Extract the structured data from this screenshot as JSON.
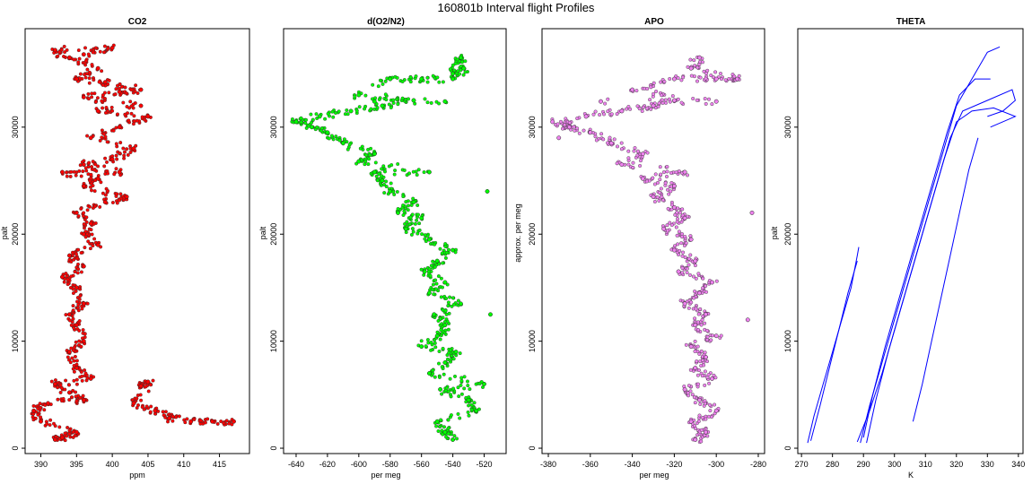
{
  "figure_title": "160801b   Interval flight Profiles",
  "chart_data": [
    {
      "type": "scatter",
      "title": "CO2",
      "xlabel": "ppm",
      "ylabel": "palt",
      "xlim": [
        387.8,
        419.2
      ],
      "ylim": [
        -500,
        39200
      ],
      "xticks": [
        390,
        395,
        400,
        405,
        410,
        415
      ],
      "yticks": [
        0,
        10000,
        20000,
        30000
      ],
      "color": "#ff0000",
      "series": [
        {
          "points": [
            [
              392,
              800
            ],
            [
              393,
              1000
            ],
            [
              395,
              1500
            ],
            [
              390,
              2500
            ],
            [
              389,
              3500
            ],
            [
              391,
              4200
            ],
            [
              396,
              4500
            ],
            [
              394,
              5200
            ],
            [
              392,
              6000
            ],
            [
              397,
              6500
            ],
            [
              395,
              7500
            ],
            [
              394,
              9000
            ],
            [
              396,
              10000
            ],
            [
              395,
              11500
            ],
            [
              394,
              12500
            ],
            [
              396,
              13500
            ],
            [
              395,
              15000
            ],
            [
              393,
              16000
            ],
            [
              396,
              17000
            ],
            [
              394,
              18000
            ],
            [
              398,
              19000
            ],
            [
              396,
              20000
            ],
            [
              397,
              21000
            ],
            [
              395,
              22000
            ],
            [
              399,
              23000
            ],
            [
              402,
              23500
            ],
            [
              396,
              24500
            ],
            [
              398,
              25200
            ],
            [
              393,
              25800
            ],
            [
              401,
              25800
            ],
            [
              396,
              26500
            ],
            [
              400,
              27000
            ],
            [
              403,
              28000
            ],
            [
              397,
              29000
            ],
            [
              401,
              30000
            ],
            [
              405,
              31000
            ],
            [
              398,
              31500
            ],
            [
              404,
              32000
            ],
            [
              396,
              32800
            ],
            [
              401,
              33300
            ],
            [
              404,
              33500
            ],
            [
              399,
              34200
            ],
            [
              395,
              34500
            ],
            [
              398,
              35500
            ],
            [
              394,
              36500
            ],
            [
              392,
              37200
            ],
            [
              400,
              37400
            ],
            [
              396,
              36800
            ],
            [
              404,
              5800
            ],
            [
              405,
              6200
            ],
            [
              403,
              4200
            ],
            [
              406,
              3500
            ],
            [
              408,
              2800
            ],
            [
              411,
              2500
            ],
            [
              414,
              2500
            ],
            [
              417,
              2500
            ]
          ]
        }
      ]
    },
    {
      "type": "scatter",
      "title": "d(O2/N2)",
      "xlabel": "per meg",
      "ylabel": "palt",
      "xlim": [
        -648,
        -506
      ],
      "ylim": [
        -500,
        39200
      ],
      "xticks": [
        -640,
        -620,
        -600,
        -580,
        -560,
        -540,
        -520
      ],
      "yticks": [
        0,
        10000,
        20000,
        30000
      ],
      "color": "#00ff00",
      "series": [
        {
          "points": [
            [
              -540,
              800
            ],
            [
              -545,
              1500
            ],
            [
              -550,
              2500
            ],
            [
              -525,
              3500
            ],
            [
              -530,
              4500
            ],
            [
              -548,
              5500
            ],
            [
              -520,
              6000
            ],
            [
              -555,
              7000
            ],
            [
              -545,
              8000
            ],
            [
              -538,
              9000
            ],
            [
              -560,
              9500
            ],
            [
              -550,
              10500
            ],
            [
              -545,
              11500
            ],
            [
              -552,
              12500
            ],
            [
              -535,
              13500
            ],
            [
              -555,
              14500
            ],
            [
              -545,
              15500
            ],
            [
              -558,
              16500
            ],
            [
              -550,
              17500
            ],
            [
              -540,
              18500
            ],
            [
              -555,
              19500
            ],
            [
              -570,
              20500
            ],
            [
              -560,
              21500
            ],
            [
              -575,
              22000
            ],
            [
              -565,
              23000
            ],
            [
              -580,
              24000
            ],
            [
              -585,
              25000
            ],
            [
              -590,
              25800
            ],
            [
              -555,
              25800
            ],
            [
              -600,
              26800
            ],
            [
              -590,
              27500
            ],
            [
              -610,
              28500
            ],
            [
              -620,
              29500
            ],
            [
              -630,
              30000
            ],
            [
              -640,
              30500
            ],
            [
              -625,
              31000
            ],
            [
              -605,
              31500
            ],
            [
              -585,
              32000
            ],
            [
              -565,
              32500
            ],
            [
              -600,
              33000
            ],
            [
              -580,
              34500
            ],
            [
              -560,
              34500
            ],
            [
              -540,
              34500
            ],
            [
              -533,
              35500
            ],
            [
              -535,
              36500
            ],
            [
              -540,
              35000
            ],
            [
              -518,
              24000
            ],
            [
              -516,
              12500
            ],
            [
              -545,
              32400
            ],
            [
              -590,
              32400
            ]
          ]
        }
      ]
    },
    {
      "type": "scatter",
      "title": "APO",
      "xlabel": "per meg",
      "ylabel": "approx. per meg",
      "xlim": [
        -383,
        -277
      ],
      "ylim": [
        -500,
        39200
      ],
      "xticks": [
        -380,
        -360,
        -340,
        -320,
        -300,
        -280
      ],
      "yticks": [
        0,
        10000,
        20000,
        30000
      ],
      "color": "#ee82ee",
      "series": [
        {
          "points": [
            [
              -310,
              800
            ],
            [
              -305,
              1500
            ],
            [
              -312,
              2500
            ],
            [
              -300,
              3500
            ],
            [
              -308,
              4500
            ],
            [
              -315,
              5500
            ],
            [
              -302,
              6500
            ],
            [
              -310,
              7500
            ],
            [
              -305,
              8500
            ],
            [
              -312,
              9500
            ],
            [
              -300,
              10500
            ],
            [
              -310,
              11500
            ],
            [
              -305,
              12500
            ],
            [
              -315,
              13500
            ],
            [
              -308,
              14500
            ],
            [
              -302,
              15500
            ],
            [
              -318,
              16500
            ],
            [
              -310,
              17500
            ],
            [
              -320,
              18500
            ],
            [
              -312,
              19500
            ],
            [
              -325,
              20500
            ],
            [
              -315,
              21500
            ],
            [
              -320,
              22500
            ],
            [
              -330,
              23500
            ],
            [
              -320,
              24500
            ],
            [
              -335,
              25200
            ],
            [
              -315,
              25800
            ],
            [
              -345,
              26500
            ],
            [
              -335,
              27500
            ],
            [
              -350,
              28500
            ],
            [
              -360,
              29500
            ],
            [
              -370,
              30000
            ],
            [
              -378,
              30500
            ],
            [
              -362,
              31000
            ],
            [
              -345,
              31500
            ],
            [
              -330,
              32000
            ],
            [
              -320,
              32500
            ],
            [
              -340,
              33500
            ],
            [
              -320,
              34500
            ],
            [
              -300,
              34500
            ],
            [
              -290,
              34500
            ],
            [
              -312,
              35500
            ],
            [
              -308,
              36500
            ],
            [
              -375,
              29000
            ],
            [
              -283,
              22000
            ],
            [
              -285,
              12000
            ],
            [
              -300,
              32400
            ],
            [
              -355,
              32400
            ]
          ]
        }
      ]
    },
    {
      "type": "line",
      "title": "THETA",
      "xlabel": "K",
      "ylabel": "palt",
      "xlim": [
        268.8,
        341.5
      ],
      "ylim": [
        -500,
        39200
      ],
      "xticks": [
        270,
        280,
        290,
        300,
        310,
        320,
        330,
        340
      ],
      "yticks": [
        0,
        10000,
        20000,
        30000
      ],
      "color": "#0000ff",
      "series": [
        {
          "points": [
            [
              272,
              500
            ],
            [
              274,
              3000
            ],
            [
              277,
              6000
            ],
            [
              280,
              9000
            ],
            [
              283,
              12000
            ],
            [
              286,
              15000
            ],
            [
              288,
              18000
            ],
            [
              288.5,
              18800
            ]
          ]
        },
        {
          "points": [
            [
              273,
              700
            ],
            [
              276,
              4000
            ],
            [
              279,
              7500
            ],
            [
              282,
              11000
            ],
            [
              285,
              14500
            ],
            [
              288,
              17500
            ]
          ]
        },
        {
          "points": [
            [
              289,
              500
            ],
            [
              292,
              4000
            ],
            [
              296,
              8000
            ],
            [
              300,
              12000
            ],
            [
              304,
              16000
            ],
            [
              308,
              20000
            ],
            [
              312,
              24000
            ],
            [
              316,
              28000
            ],
            [
              320,
              32000
            ],
            [
              325,
              34500
            ],
            [
              330,
              37000
            ],
            [
              334,
              37500
            ]
          ]
        },
        {
          "points": [
            [
              291,
              500
            ],
            [
              294,
              4500
            ],
            [
              298,
              9000
            ],
            [
              302,
              13000
            ],
            [
              306,
              17000
            ],
            [
              310,
              21000
            ],
            [
              314,
              25000
            ],
            [
              318,
              29000
            ],
            [
              322,
              31500
            ],
            [
              330,
              32500
            ],
            [
              338,
              33500
            ],
            [
              339,
              32500
            ],
            [
              335,
              31500
            ],
            [
              330,
              31000
            ]
          ]
        },
        {
          "points": [
            [
              290,
              1000
            ],
            [
              293,
              5000
            ],
            [
              297,
              9500
            ],
            [
              301,
              13500
            ],
            [
              305,
              17500
            ],
            [
              309,
              21500
            ],
            [
              313,
              25500
            ],
            [
              317,
              29500
            ],
            [
              321,
              33000
            ],
            [
              326,
              34500
            ],
            [
              331,
              34500
            ]
          ]
        },
        {
          "points": [
            [
              288,
              600
            ],
            [
              292,
              3500
            ],
            [
              296,
              7000
            ],
            [
              300,
              11000
            ],
            [
              304,
              15000
            ],
            [
              308,
              19000
            ],
            [
              312,
              23000
            ],
            [
              316,
              27000
            ],
            [
              320,
              30500
            ],
            [
              325,
              31500
            ],
            [
              332,
              31800
            ],
            [
              339,
              31000
            ],
            [
              331,
              30000
            ]
          ]
        },
        {
          "points": [
            [
              306,
              2500
            ],
            [
              309,
              6000
            ],
            [
              312,
              10000
            ],
            [
              315,
              14000
            ],
            [
              318,
              18000
            ],
            [
              321,
              22000
            ],
            [
              324,
              26000
            ],
            [
              327,
              29000
            ]
          ]
        }
      ]
    }
  ]
}
